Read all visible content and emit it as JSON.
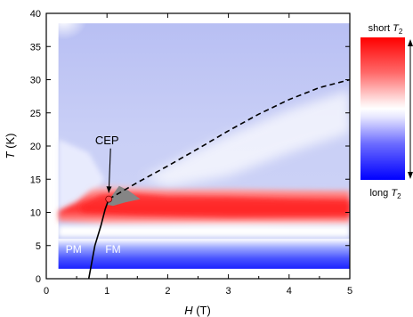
{
  "chart_data": {
    "type": "heatmap",
    "title": "",
    "xlabel": {
      "italic": "H",
      "unit": " (T)"
    },
    "ylabel": {
      "italic": "T",
      "unit": " (K)"
    },
    "xlim": [
      0,
      5
    ],
    "ylim": [
      0,
      40
    ],
    "xticks": [
      0,
      1,
      2,
      3,
      4,
      5
    ],
    "yticks": [
      0,
      5,
      10,
      15,
      20,
      25,
      30,
      35,
      40
    ],
    "data_extent": {
      "x": [
        0.2,
        5.0
      ],
      "y": [
        1.5,
        38.5
      ]
    },
    "colorscale": {
      "top_label": {
        "text": "short ",
        "italic": "T",
        "sub": "2"
      },
      "bottom_label": {
        "text": "long ",
        "italic": "T",
        "sub": "2"
      },
      "colors": [
        "#ff0000",
        "#ffffff",
        "#0000ff"
      ]
    },
    "features": {
      "red_band": {
        "x": [
          0.2,
          5.0
        ],
        "y": [
          8.0,
          13.5
        ],
        "peak_y": 11.0
      },
      "blue_band": {
        "x": [
          0.2,
          5.0
        ],
        "y": [
          1.5,
          6.0
        ]
      },
      "low_field_spot": {
        "x": 0.2,
        "y": 39.0
      },
      "cep_region": {
        "x": [
          1.0,
          1.55
        ],
        "y": [
          11.0,
          14.0
        ]
      }
    },
    "lines": [
      {
        "style": "solid",
        "points": [
          [
            0.7,
            0
          ],
          [
            0.8,
            5.0
          ],
          [
            0.9,
            8.0
          ],
          [
            0.97,
            10.5
          ],
          [
            1.03,
            12.0
          ]
        ]
      },
      {
        "style": "dashed",
        "points": [
          [
            1.03,
            12.0
          ],
          [
            1.5,
            14.5
          ],
          [
            2.0,
            17.0
          ],
          [
            2.5,
            19.6
          ],
          [
            3.0,
            22.3
          ],
          [
            3.5,
            24.8
          ],
          [
            4.0,
            27.0
          ],
          [
            4.5,
            28.8
          ],
          [
            5.0,
            30.0
          ]
        ]
      }
    ],
    "cep": {
      "x": 1.03,
      "y": 12.0
    },
    "annotations": [
      {
        "text": "CEP",
        "x": 1.0,
        "y": 20.3,
        "arrow_to": [
          1.03,
          12.3
        ]
      },
      {
        "text": "PM",
        "x": 0.45,
        "y": 3.9
      },
      {
        "text": "FM",
        "x": 1.1,
        "y": 3.9
      }
    ]
  }
}
